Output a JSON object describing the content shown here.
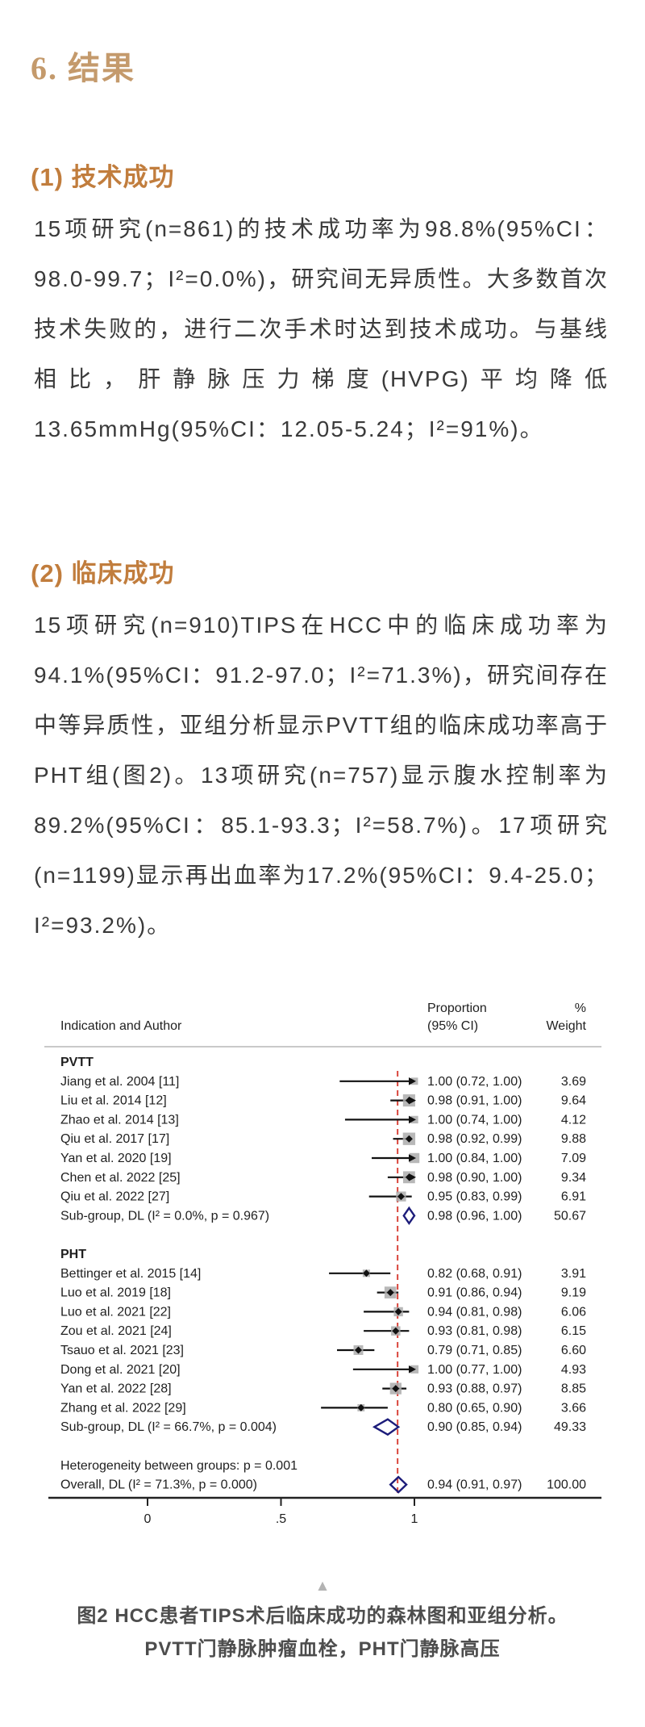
{
  "page": {
    "title": "6. 结果",
    "sections": [
      {
        "heading": "(1) 技术成功",
        "body": "15项研究(n=861)的技术成功率为98.8%(95%CI：98.0-99.7；I²=0.0%)，研究间无异质性。大多数首次技术失败的，进行二次手术时达到技术成功。与基线相比，肝静脉压力梯度(HVPG)平均降低13.65mmHg(95%CI：12.05-5.24；I²=91%)。"
      },
      {
        "heading": "(2) 临床成功",
        "body": "15项研究(n=910)TIPS在HCC中的临床成功率为94.1%(95%CI：91.2-97.0；I²=71.3%)，研究间存在中等异质性，亚组分析显示PVTT组的临床成功率高于PHT组(图2)。13项研究(n=757)显示腹水控制率为89.2%(95%CI：85.1-93.3；I²=58.7%)。17项研究(n=1199)显示再出血率为17.2%(95%CI：9.4-25.0；I²=93.2%)。"
      }
    ],
    "figure_caption": {
      "icon": "▲",
      "line1": "图2 HCC患者TIPS术后临床成功的森林图和亚组分析。",
      "line2": "PVTT门静脉肿瘤血栓，PHT门静脉高压"
    }
  },
  "chart_data": {
    "type": "forest",
    "columns": {
      "left_header": "Indication and Author",
      "effect_header_line1": "Proportion",
      "effect_header_line2": "(95% CI)",
      "weight_header_line1": "%",
      "weight_header_line2": "Weight"
    },
    "axis": {
      "tick_labels": [
        "0",
        ".5",
        "1"
      ],
      "tick_values": [
        0,
        0.5,
        1
      ],
      "range": [
        0,
        1
      ]
    },
    "ref_line": 0.937,
    "groups": [
      {
        "name": "PVTT",
        "studies": [
          {
            "label": "Jiang et al. 2004 [11]",
            "est": 1.0,
            "lo": 0.72,
            "hi": 1.0,
            "weight": 3.69
          },
          {
            "label": "Liu et al. 2014 [12]",
            "est": 0.98,
            "lo": 0.91,
            "hi": 1.0,
            "weight": 9.64
          },
          {
            "label": "Zhao et al. 2014 [13]",
            "est": 1.0,
            "lo": 0.74,
            "hi": 1.0,
            "weight": 4.12
          },
          {
            "label": "Qiu et al. 2017 [17]",
            "est": 0.98,
            "lo": 0.92,
            "hi": 0.99,
            "weight": 9.88
          },
          {
            "label": "Yan et al. 2020 [19]",
            "est": 1.0,
            "lo": 0.84,
            "hi": 1.0,
            "weight": 7.09
          },
          {
            "label": "Chen et al. 2022 [25]",
            "est": 0.98,
            "lo": 0.9,
            "hi": 1.0,
            "weight": 9.34
          },
          {
            "label": "Qiu et al. 2022 [27]",
            "est": 0.95,
            "lo": 0.83,
            "hi": 0.99,
            "weight": 6.91
          }
        ],
        "subgroup": {
          "label": "Sub-group, DL (I² = 0.0%, p = 0.967)",
          "est": 0.98,
          "lo": 0.96,
          "hi": 1.0,
          "weight": 50.67
        }
      },
      {
        "name": "PHT",
        "studies": [
          {
            "label": "Bettinger et al. 2015 [14]",
            "est": 0.82,
            "lo": 0.68,
            "hi": 0.91,
            "weight": 3.91
          },
          {
            "label": "Luo et al. 2019 [18]",
            "est": 0.91,
            "lo": 0.86,
            "hi": 0.94,
            "weight": 9.19
          },
          {
            "label": "Luo et al. 2021 [22]",
            "est": 0.94,
            "lo": 0.81,
            "hi": 0.98,
            "weight": 6.06
          },
          {
            "label": "Zou et al. 2021 [24]",
            "est": 0.93,
            "lo": 0.81,
            "hi": 0.98,
            "weight": 6.15
          },
          {
            "label": "Tsauo et al. 2021 [23]",
            "est": 0.79,
            "lo": 0.71,
            "hi": 0.85,
            "weight": 6.6
          },
          {
            "label": "Dong et al. 2021 [20]",
            "est": 1.0,
            "lo": 0.77,
            "hi": 1.0,
            "weight": 4.93
          },
          {
            "label": "Yan et al. 2022 [28]",
            "est": 0.93,
            "lo": 0.88,
            "hi": 0.97,
            "weight": 8.85
          },
          {
            "label": "Zhang et al. 2022 [29]",
            "est": 0.8,
            "lo": 0.65,
            "hi": 0.9,
            "weight": 3.66
          }
        ],
        "subgroup": {
          "label": "Sub-group, DL (I² = 66.7%, p = 0.004)",
          "est": 0.9,
          "lo": 0.85,
          "hi": 0.94,
          "weight": 49.33
        }
      }
    ],
    "heterogeneity_note": "Heterogeneity between groups: p = 0.001",
    "overall": {
      "label": "Overall, DL (I² = 71.3%, p = 0.000)",
      "est": 0.94,
      "lo": 0.91,
      "hi": 0.97,
      "weight": 100.0
    },
    "colors": {
      "ref_line": "#d9453c",
      "diamond": "#1c1c7a",
      "ci_line": "#111111",
      "weight_box": "#ababab",
      "axis": "#222222",
      "rule": "#c9c9c9",
      "text": "#1f1f1f"
    }
  }
}
